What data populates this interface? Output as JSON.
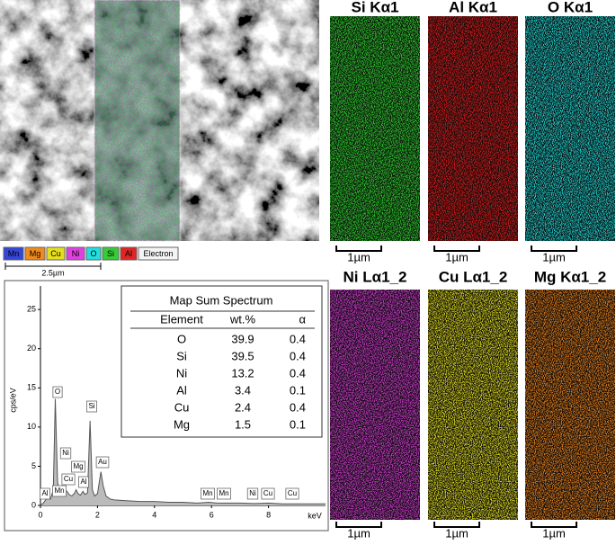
{
  "sem": {
    "legend": [
      {
        "label": "Mn",
        "color": "#3346d8"
      },
      {
        "label": "Mg",
        "color": "#f08a1c"
      },
      {
        "label": "Cu",
        "color": "#e6df1e"
      },
      {
        "label": "Ni",
        "color": "#e040e0"
      },
      {
        "label": "O",
        "color": "#22dede"
      },
      {
        "label": "Si",
        "color": "#35cc35"
      },
      {
        "label": "Al",
        "color": "#e02424"
      },
      {
        "label": "Electron",
        "color": "#f4f4f4"
      }
    ],
    "scale_bar": "2.5µm"
  },
  "maps": [
    {
      "title": "Si Kα1",
      "color": "#2fd62f",
      "scale_bar": "1µm"
    },
    {
      "title": "Al Kα1",
      "color": "#e01c1c",
      "scale_bar": "1µm"
    },
    {
      "title": "O Kα1",
      "color": "#22d8d8",
      "scale_bar": "1µm"
    },
    {
      "title": "Ni Lα1_2",
      "color": "#d43cd4",
      "scale_bar": "1µm"
    },
    {
      "title": "Cu Lα1_2",
      "color": "#e4e020",
      "scale_bar": "1µm"
    },
    {
      "title": "Mg Kα1_2",
      "color": "#e8801c",
      "scale_bar": "1µm"
    }
  ],
  "chart_data": {
    "type": "line",
    "xlabel": "keV",
    "ylabel": "cps/eV",
    "color": "#555555",
    "x": [
      0,
      0.1,
      0.2,
      0.28,
      0.35,
      0.45,
      0.52,
      0.6,
      0.7,
      0.78,
      0.85,
      0.93,
      1.0,
      1.1,
      1.2,
      1.25,
      1.32,
      1.4,
      1.49,
      1.56,
      1.65,
      1.74,
      1.82,
      1.9,
      2.0,
      2.12,
      2.2,
      2.3,
      2.45,
      2.6,
      3,
      3.5,
      4,
      4.5,
      5,
      5.5,
      5.9,
      6.2,
      6.5,
      7,
      7.5,
      8,
      8.5,
      9,
      9.5,
      10
    ],
    "values": [
      0,
      0.3,
      0.8,
      1.0,
      0.8,
      2,
      13.6,
      3,
      1.2,
      1.5,
      2.0,
      1.8,
      1.4,
      1.2,
      1.6,
      2.0,
      1.5,
      1.3,
      1.8,
      1.4,
      1.6,
      10.8,
      2,
      1.2,
      1.5,
      4.3,
      2.5,
      1.2,
      0.8,
      0.7,
      0.6,
      0.5,
      0.5,
      0.4,
      0.4,
      0.3,
      0.4,
      0.3,
      0.3,
      0.3,
      0.25,
      0.3,
      0.2,
      0.2,
      0.2,
      0.2
    ],
    "xlim": [
      0,
      10
    ],
    "xticks": [
      0,
      2,
      4,
      6,
      8
    ],
    "ylim": [
      0,
      28
    ],
    "yticks": [
      0,
      5,
      10,
      15,
      20,
      25
    ],
    "annotations": [
      "Al",
      "Mn",
      "O",
      "Ni",
      "Mg",
      "Cu",
      "Al",
      "Si",
      "Au",
      "Mn",
      "Mn",
      "Ni",
      "Cu",
      "Cu"
    ]
  },
  "table": {
    "title": "Map Sum Spectrum",
    "columns": [
      "Element",
      "wt.%",
      "α"
    ],
    "rows": [
      [
        "O",
        "39.9",
        "0.4"
      ],
      [
        "Si",
        "39.5",
        "0.4"
      ],
      [
        "Ni",
        "13.2",
        "0.4"
      ],
      [
        "Al",
        "3.4",
        "0.1"
      ],
      [
        "Cu",
        "2.4",
        "0.4"
      ],
      [
        "Mg",
        "1.5",
        "0.1"
      ]
    ]
  }
}
